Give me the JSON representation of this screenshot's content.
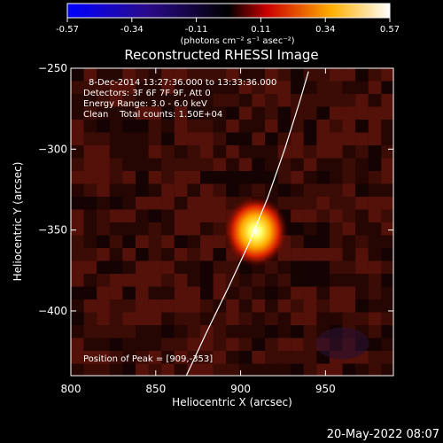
{
  "chart_data": {
    "type": "heatmap",
    "title": "Reconstructed RHESSI Image",
    "xlabel": "Heliocentric X (arcsec)",
    "ylabel": "Heliocentric Y (arcsec)",
    "xlim": [
      800,
      990
    ],
    "ylim": [
      -440,
      -250
    ],
    "x_ticks": [
      800,
      850,
      900,
      950
    ],
    "y_ticks": [
      -250,
      -300,
      -350,
      -400
    ],
    "colorbar": {
      "min": -0.57,
      "max": 0.57,
      "ticks": [
        "-0.57",
        "-0.34",
        "-0.11",
        "0.11",
        "0.34",
        "0.57"
      ],
      "unit_text": "(photons cm⁻² s⁻¹ asec⁻²)",
      "colors": [
        "#0000ff",
        "#2a0a8a",
        "#000000",
        "#cc0000",
        "#ffb000",
        "#ffffff"
      ]
    },
    "annotations": {
      "time_range": "8-Dec-2014 13:27:36.000 to 13:33:36.000",
      "detectors": "Detectors: 3F 6F 7F 9F, Att 0",
      "energy": "Energy Range: 3.0 - 6.0 keV",
      "method": "Clean    Total counts: 1.50E+04",
      "peak": "Position of Peak = [909,-353]"
    },
    "peak": {
      "x": 909,
      "y": -353,
      "value": 0.57,
      "sigma_arcsec": 8
    },
    "limb_curve": [
      [
        868,
        -440
      ],
      [
        880,
        -413
      ],
      [
        893,
        -385
      ],
      [
        905,
        -358
      ],
      [
        916,
        -330
      ],
      [
        926,
        -300
      ],
      [
        935,
        -270
      ],
      [
        940,
        -252
      ]
    ]
  },
  "footer": {
    "date": "20-May-2022 08:07"
  }
}
